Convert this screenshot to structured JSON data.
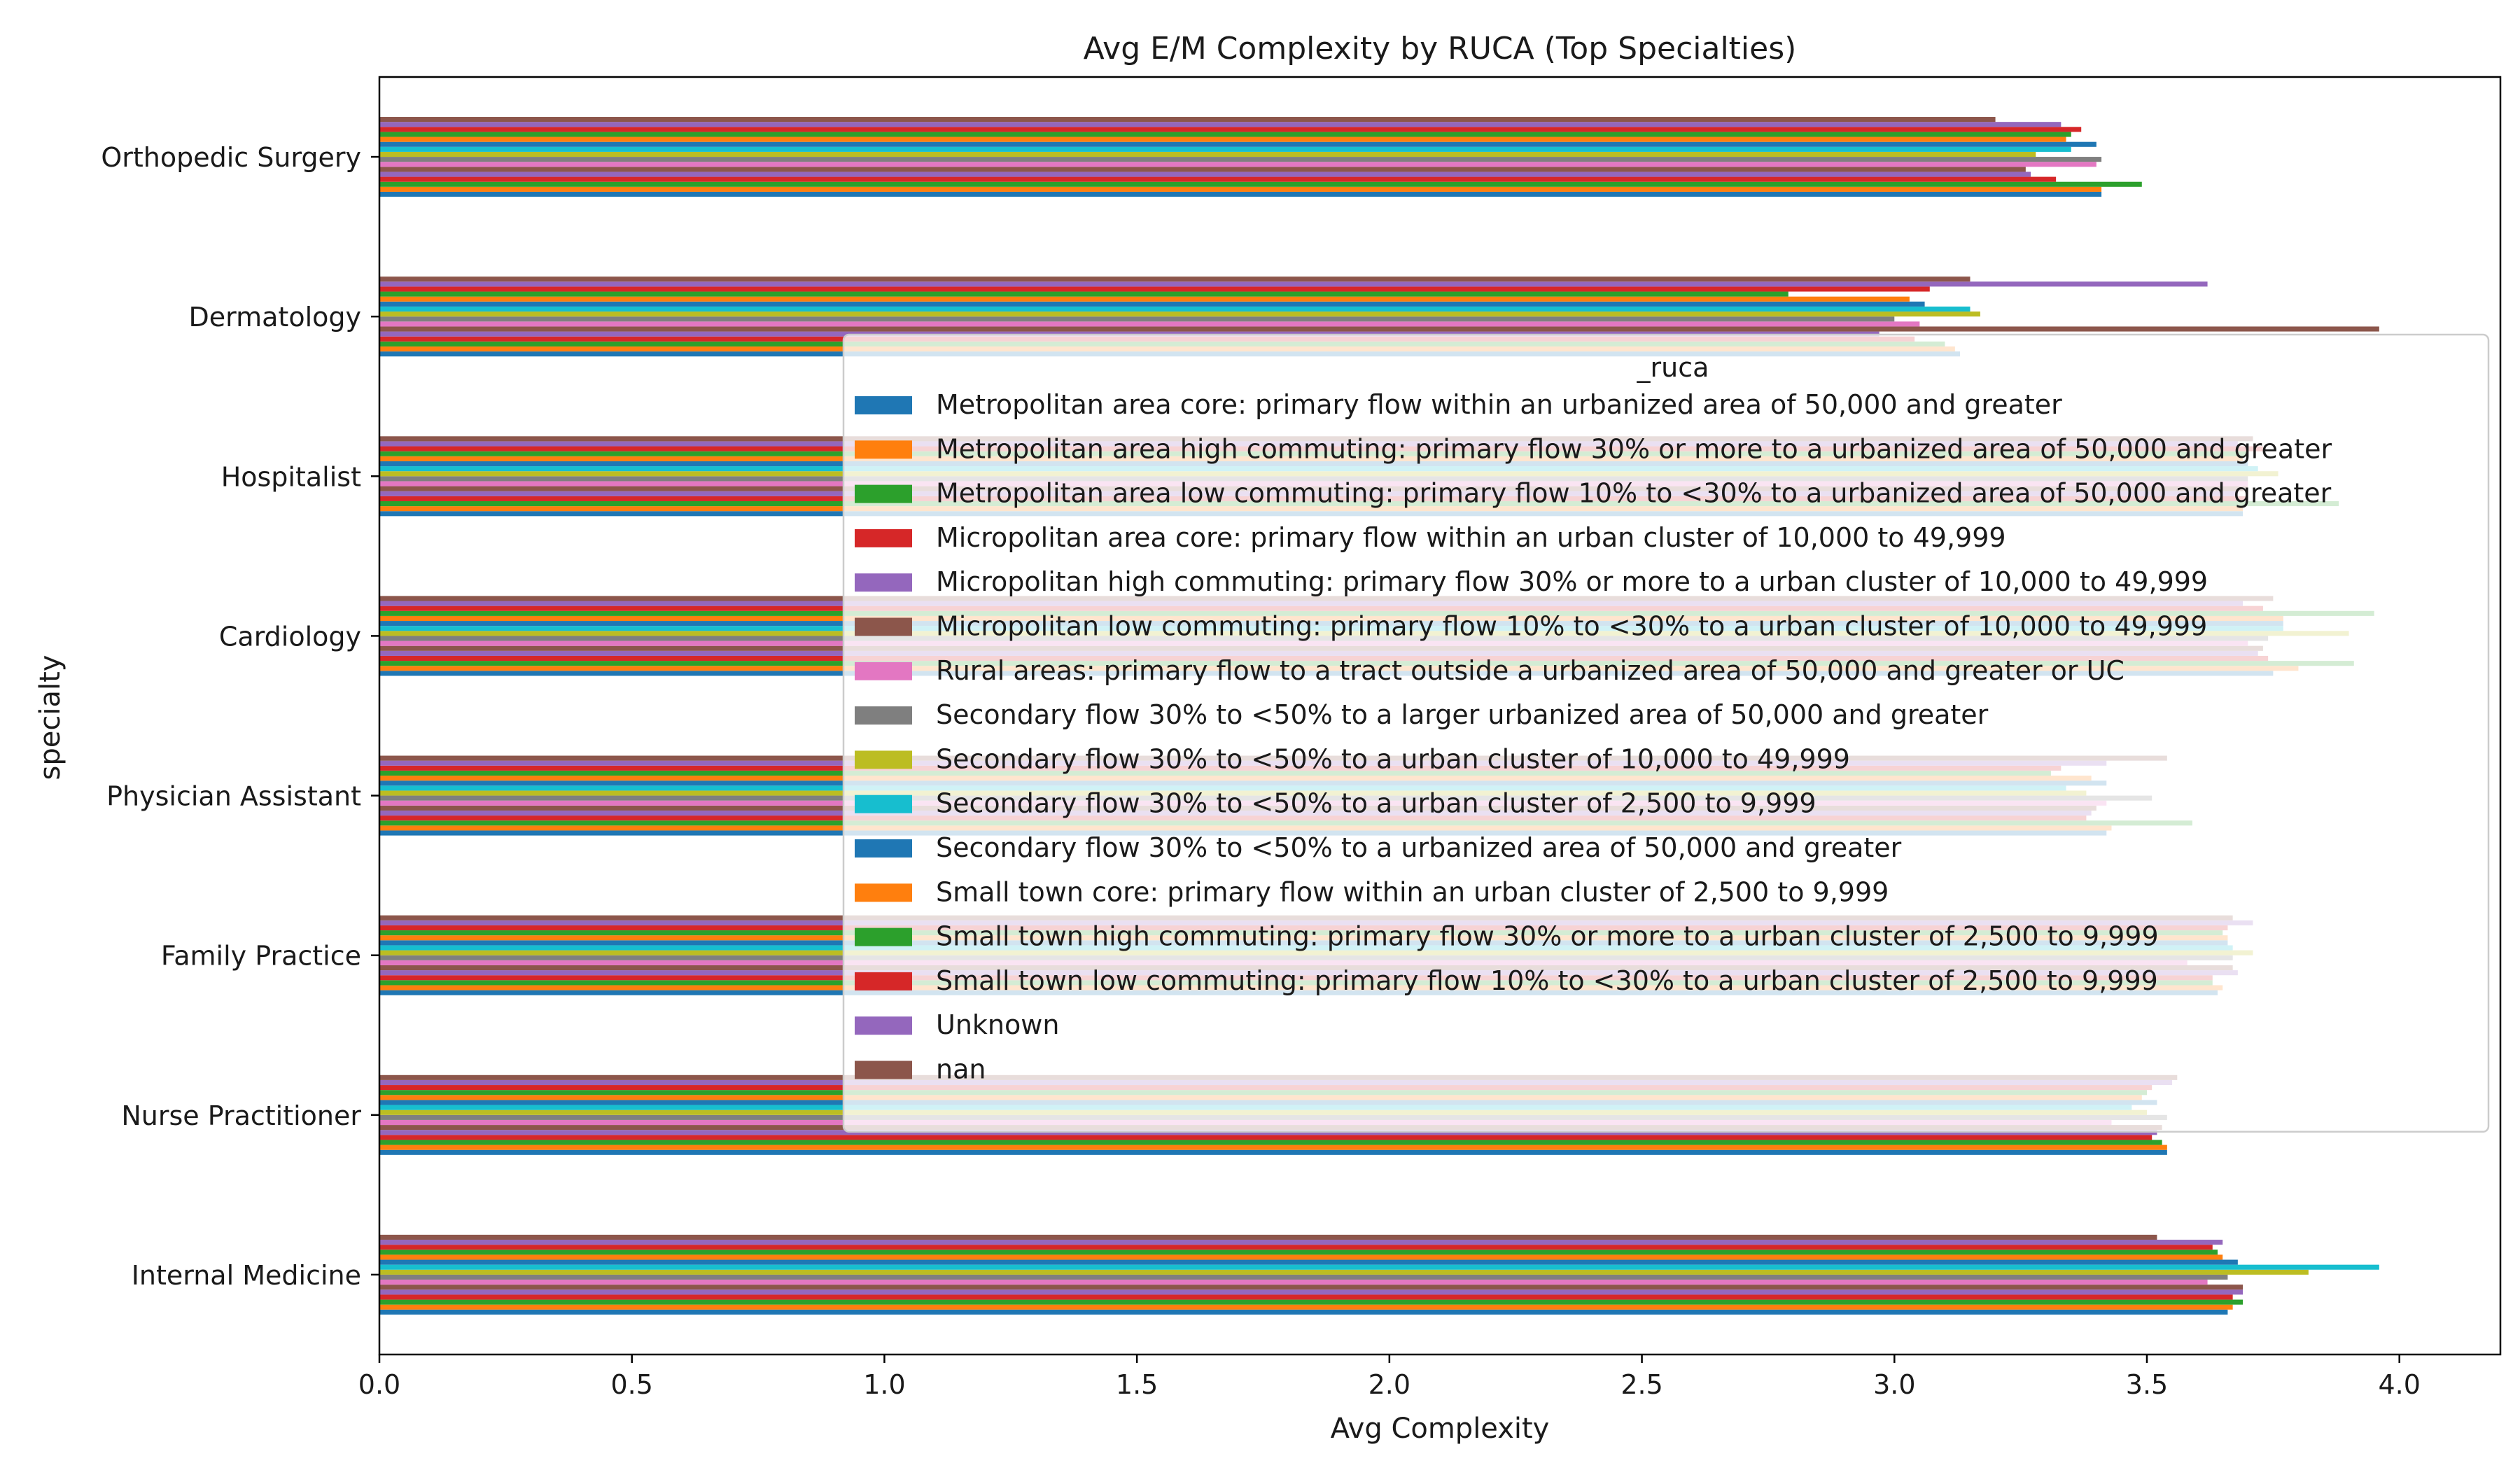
{
  "chart_data": {
    "type": "bar",
    "orientation": "horizontal",
    "title": "Avg E/M Complexity by RUCA (Top Specialties)",
    "xlabel": "Avg Complexity",
    "ylabel": "specialty",
    "xlim": [
      0,
      4.2
    ],
    "xticks": [
      0.0,
      0.5,
      1.0,
      1.5,
      2.0,
      2.5,
      3.0,
      3.5,
      4.0
    ],
    "xtick_labels": [
      "0.0",
      "0.5",
      "1.0",
      "1.5",
      "2.0",
      "2.5",
      "3.0",
      "3.5",
      "4.0"
    ],
    "grid": false,
    "legend": {
      "title": "_ruca",
      "placement": "center-right"
    },
    "categories": [
      "Internal Medicine",
      "Nurse Practitioner",
      "Family Practice",
      "Physician Assistant",
      "Cardiology",
      "Hospitalist",
      "Dermatology",
      "Orthopedic Surgery"
    ],
    "series": [
      {
        "name": "Metropolitan area core: primary flow within an urbanized area of 50,000 and greater",
        "color": "#1f77b4",
        "values": [
          3.66,
          3.54,
          3.64,
          3.42,
          3.75,
          3.69,
          3.13,
          3.41
        ]
      },
      {
        "name": "Metropolitan area high commuting: primary flow 30% or more to a urbanized area of 50,000 and greater",
        "color": "#ff7f0e",
        "values": [
          3.67,
          3.54,
          3.65,
          3.43,
          3.8,
          3.69,
          3.12,
          3.41
        ]
      },
      {
        "name": "Metropolitan area low commuting: primary flow 10% to <30% to a urbanized area of 50,000 and greater",
        "color": "#2ca02c",
        "values": [
          3.69,
          3.53,
          3.63,
          3.59,
          3.91,
          3.88,
          3.1,
          3.49
        ]
      },
      {
        "name": "Micropolitan area core: primary flow within an urban cluster of 10,000 to 49,999",
        "color": "#d62728",
        "values": [
          3.67,
          3.51,
          3.63,
          3.38,
          3.74,
          3.7,
          3.04,
          3.32
        ]
      },
      {
        "name": "Micropolitan high commuting: primary flow 30% or more to a urban cluster of 10,000 to 49,999",
        "color": "#9467bd",
        "values": [
          3.69,
          3.52,
          3.68,
          3.39,
          3.72,
          3.68,
          2.97,
          3.27
        ]
      },
      {
        "name": "Micropolitan low commuting: primary flow 10% to <30% to a urban cluster of 10,000 to 49,999",
        "color": "#8c564b",
        "values": [
          3.69,
          3.53,
          3.67,
          3.4,
          3.73,
          3.7,
          3.96,
          3.26
        ]
      },
      {
        "name": "Rural areas: primary flow to a tract outside a urbanized area of 50,000 and greater or UC",
        "color": "#e377c2",
        "values": [
          3.62,
          3.43,
          3.58,
          3.42,
          3.7,
          3.7,
          3.05,
          3.4
        ]
      },
      {
        "name": "Secondary flow 30% to <50% to a larger urbanized area of 50,000 and greater",
        "color": "#7f7f7f",
        "values": [
          3.66,
          3.54,
          3.67,
          3.51,
          3.74,
          3.7,
          3.0,
          3.41
        ]
      },
      {
        "name": "Secondary flow 30% to <50% to a urban cluster of 10,000 to 49,999",
        "color": "#bcbd22",
        "values": [
          3.82,
          3.5,
          3.71,
          3.38,
          3.9,
          3.76,
          3.17,
          3.28
        ]
      },
      {
        "name": "Secondary flow 30% to <50% to a urban cluster of 2,500 to 9,999",
        "color": "#17becf",
        "values": [
          3.96,
          3.47,
          3.67,
          3.34,
          3.77,
          3.72,
          3.15,
          3.35
        ]
      },
      {
        "name": "Secondary flow 30% to <50% to a urbanized area of 50,000 and greater",
        "color": "#1f77b4",
        "values": [
          3.68,
          3.52,
          3.66,
          3.42,
          3.77,
          3.7,
          3.06,
          3.4
        ]
      },
      {
        "name": "Small town core: primary flow within an urban cluster of 2,500 to 9,999",
        "color": "#ff7f0e",
        "values": [
          3.65,
          3.49,
          3.66,
          3.39,
          3.77,
          3.69,
          3.03,
          3.34
        ]
      },
      {
        "name": "Small town high commuting: primary flow 30% or more to a urban cluster of 2,500 to 9,999",
        "color": "#2ca02c",
        "values": [
          3.64,
          3.5,
          3.65,
          3.31,
          3.95,
          3.7,
          2.79,
          3.35
        ]
      },
      {
        "name": "Small town low commuting: primary flow 10% to <30% to a urban cluster of 2,500 to 9,999",
        "color": "#d62728",
        "values": [
          3.63,
          3.51,
          3.66,
          3.33,
          3.73,
          3.73,
          3.07,
          3.37
        ]
      },
      {
        "name": "Unknown",
        "color": "#9467bd",
        "values": [
          3.65,
          3.55,
          3.71,
          3.42,
          3.69,
          3.68,
          3.62,
          3.33
        ]
      },
      {
        "name": "nan",
        "color": "#8c564b",
        "values": [
          3.52,
          3.56,
          3.67,
          3.54,
          3.75,
          3.71,
          3.15,
          3.2
        ]
      }
    ]
  }
}
